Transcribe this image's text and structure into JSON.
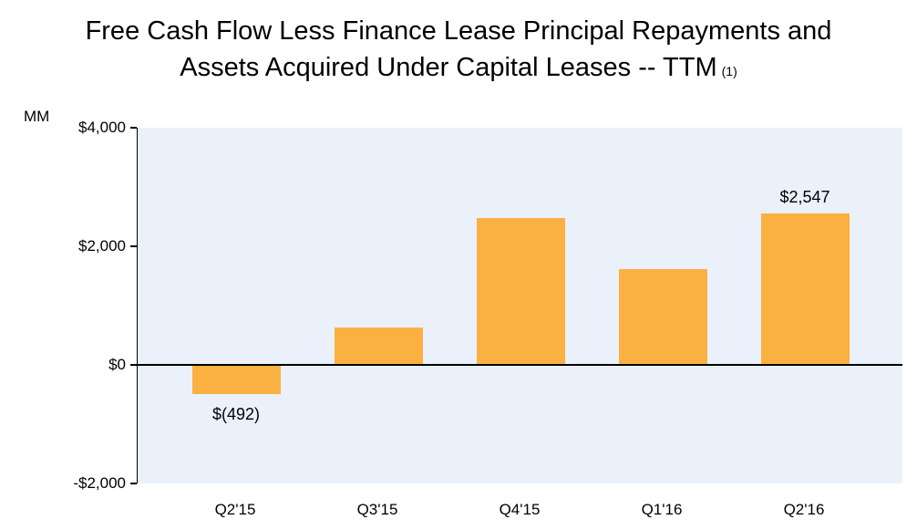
{
  "title": {
    "line1": "Free Cash Flow Less Finance Lease Principal Repayments and",
    "line2": "Assets Acquired Under Capital Leases -- TTM",
    "footnote_marker": "(1)"
  },
  "chart_data": {
    "type": "bar",
    "title": "Free Cash Flow Less Finance Lease Principal Repayments and Assets Acquired Under Capital Leases -- TTM (1)",
    "ylabel": "MM",
    "xlabel": "",
    "categories": [
      "Q2'15",
      "Q3'15",
      "Q4'15",
      "Q1'16",
      "Q2'16"
    ],
    "values": [
      -492,
      630,
      2480,
      1610,
      2547
    ],
    "data_labels": [
      "$(492)",
      null,
      null,
      null,
      "$2,547"
    ],
    "y_ticks": [
      {
        "value": 4000,
        "label": "$4,000"
      },
      {
        "value": 2000,
        "label": "$2,000"
      },
      {
        "value": 0,
        "label": "$0"
      },
      {
        "value": -2000,
        "label": "-$2,000"
      }
    ],
    "ylim": [
      -2000,
      4000
    ],
    "grid": false,
    "legend": "none",
    "colors": {
      "bar": "#FBB042",
      "plot_background": "#EAF1FB",
      "axis": "#000000",
      "text": "#000000"
    }
  }
}
